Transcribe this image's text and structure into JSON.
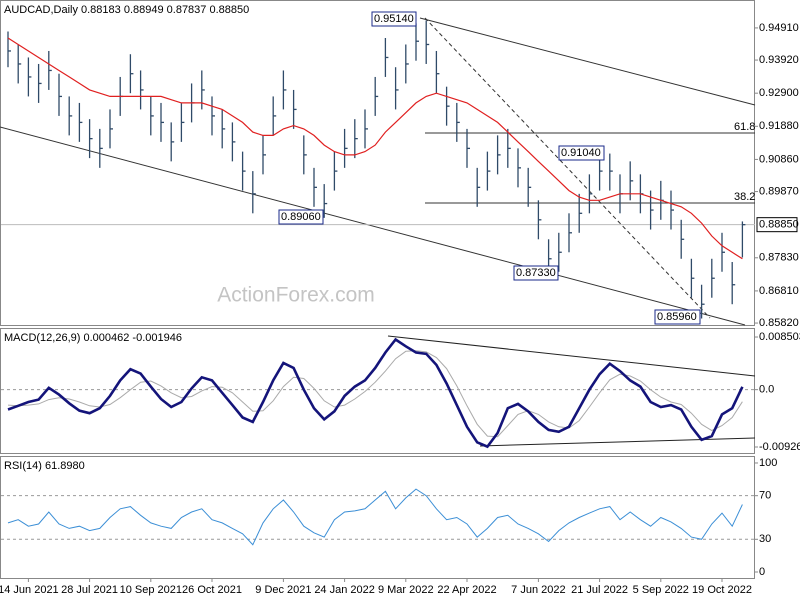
{
  "chart_data": [
    {
      "type": "ohlc",
      "title": "AUDCAD,Daily  0.88183 0.88949 0.87837 0.88850",
      "categories": [
        null,
        null,
        "14 Jun 2021",
        null,
        null,
        null,
        null,
        null,
        "28 Jul 2021",
        null,
        null,
        null,
        null,
        null,
        "10 Sep 2021",
        null,
        null,
        null,
        null,
        null,
        "26 Oct 2021",
        null,
        null,
        null,
        null,
        null,
        null,
        "9 Dec 2021",
        null,
        null,
        null,
        null,
        null,
        "24 Jan 2022",
        null,
        null,
        null,
        null,
        null,
        "9 Mar 2022",
        null,
        null,
        null,
        null,
        null,
        "22 Apr 2022",
        null,
        null,
        null,
        null,
        null,
        null,
        "7 Jun 2022",
        null,
        null,
        null,
        null,
        null,
        "21 Jul 2022",
        null,
        null,
        null,
        null,
        null,
        "5 Sep 2022",
        null,
        null,
        null,
        null,
        null,
        "19 Oct 2022",
        null,
        null
      ],
      "series": [
        {
          "name": "high",
          "color": "#2f4a68",
          "values": [
            0.948,
            0.944,
            0.94,
            0.938,
            0.942,
            0.935,
            0.928,
            0.926,
            0.921,
            0.918,
            0.924,
            0.934,
            0.941,
            0.936,
            0.928,
            0.926,
            0.92,
            0.926,
            0.932,
            0.936,
            0.928,
            0.924,
            0.92,
            0.911,
            0.905,
            0.916,
            0.928,
            0.936,
            0.93,
            0.916,
            0.906,
            0.901,
            0.911,
            0.918,
            0.921,
            0.924,
            0.934,
            0.946,
            0.937,
            0.944,
            0.9505,
            0.9514,
            0.942,
            0.931,
            0.926,
            0.918,
            0.906,
            0.911,
            0.916,
            0.918,
            0.912,
            0.906,
            0.896,
            0.884,
            0.886,
            0.892,
            0.898,
            0.904,
            0.909,
            0.9104,
            0.904,
            0.908,
            0.904,
            0.899,
            0.902,
            0.899,
            0.89,
            0.878,
            0.87,
            0.878,
            0.886,
            0.877,
            0.8895
          ]
        },
        {
          "name": "low",
          "color": "#2f4a68",
          "values": [
            0.937,
            0.932,
            0.928,
            0.926,
            0.93,
            0.922,
            0.916,
            0.914,
            0.909,
            0.906,
            0.912,
            0.922,
            0.929,
            0.924,
            0.916,
            0.914,
            0.908,
            0.914,
            0.92,
            0.924,
            0.916,
            0.912,
            0.908,
            0.899,
            0.892,
            0.904,
            0.916,
            0.924,
            0.918,
            0.904,
            0.894,
            0.8906,
            0.899,
            0.906,
            0.909,
            0.912,
            0.922,
            0.934,
            0.924,
            0.932,
            0.939,
            0.938,
            0.929,
            0.919,
            0.914,
            0.906,
            0.894,
            0.899,
            0.904,
            0.906,
            0.9,
            0.894,
            0.884,
            0.8733,
            0.874,
            0.88,
            0.886,
            0.892,
            0.899,
            0.899,
            0.892,
            0.896,
            0.892,
            0.887,
            0.89,
            0.887,
            0.878,
            0.866,
            0.8596,
            0.866,
            0.874,
            0.864,
            0.8784
          ]
        },
        {
          "name": "close",
          "color": "#2f4a68",
          "values": [
            0.942,
            0.938,
            0.934,
            0.932,
            0.936,
            0.928,
            0.922,
            0.92,
            0.915,
            0.912,
            0.918,
            0.928,
            0.935,
            0.93,
            0.922,
            0.92,
            0.914,
            0.92,
            0.926,
            0.93,
            0.922,
            0.918,
            0.914,
            0.905,
            0.898,
            0.91,
            0.922,
            0.93,
            0.924,
            0.91,
            0.9,
            0.895,
            0.905,
            0.912,
            0.915,
            0.918,
            0.928,
            0.94,
            0.93,
            0.938,
            0.945,
            0.944,
            0.935,
            0.925,
            0.92,
            0.912,
            0.9,
            0.905,
            0.91,
            0.912,
            0.906,
            0.9,
            0.89,
            0.878,
            0.88,
            0.886,
            0.892,
            0.898,
            0.905,
            0.905,
            0.898,
            0.902,
            0.898,
            0.893,
            0.896,
            0.893,
            0.884,
            0.872,
            0.864,
            0.872,
            0.88,
            0.87,
            0.8885
          ]
        },
        {
          "name": "moving-average",
          "color": "#e02020",
          "values": [
            0.946,
            0.944,
            0.942,
            0.94,
            0.938,
            0.936,
            0.934,
            0.932,
            0.93,
            0.929,
            0.928,
            0.928,
            0.928,
            0.928,
            0.928,
            0.928,
            0.927,
            0.926,
            0.926,
            0.926,
            0.925,
            0.924,
            0.922,
            0.92,
            0.917,
            0.916,
            0.916,
            0.918,
            0.919,
            0.918,
            0.916,
            0.913,
            0.911,
            0.91,
            0.91,
            0.911,
            0.913,
            0.917,
            0.92,
            0.923,
            0.926,
            0.928,
            0.929,
            0.928,
            0.927,
            0.926,
            0.924,
            0.922,
            0.92,
            0.917,
            0.914,
            0.911,
            0.908,
            0.905,
            0.902,
            0.899,
            0.897,
            0.896,
            0.896,
            0.897,
            0.898,
            0.898,
            0.898,
            0.897,
            0.896,
            0.895,
            0.894,
            0.892,
            0.889,
            0.885,
            0.882,
            0.88,
            0.878
          ]
        }
      ],
      "ylim": [
        0.8576,
        0.9577
      ],
      "yticks": [
        {
          "value": 0.9491,
          "label": "0.94910"
        },
        {
          "value": 0.9392,
          "label": "0.93920"
        },
        {
          "value": 0.929,
          "label": "0.92900"
        },
        {
          "value": 0.9188,
          "label": "0.91880"
        },
        {
          "value": 0.9086,
          "label": "0.90860"
        },
        {
          "value": 0.8987,
          "label": "0.89870"
        },
        {
          "value": 0.8783,
          "label": "0.87830"
        },
        {
          "value": 0.8681,
          "label": "0.86810"
        },
        {
          "value": 0.8582,
          "label": "0.85820"
        }
      ],
      "current_price": {
        "value": 0.8885,
        "label": "0.88850"
      },
      "annotations": [
        "0.95140",
        "0.89060",
        "0.87330",
        "0.91040",
        "0.85960",
        "61.8",
        "38.2"
      ],
      "watermark": "ActionForex.com",
      "grid": false
    },
    {
      "type": "line",
      "title": "MACD(12,26,9) 0.000462 -0.001946",
      "series": [
        {
          "name": "macd",
          "color": "#14147a",
          "values": [
            -0.0032,
            -0.0026,
            -0.002,
            -0.0016,
            0.0003,
            -0.0008,
            -0.0022,
            -0.0034,
            -0.0038,
            -0.003,
            -0.001,
            0.0015,
            0.0033,
            0.0026,
            0.0005,
            -0.0015,
            -0.0028,
            -0.002,
            0.0002,
            0.002,
            0.0015,
            -0.0005,
            -0.0025,
            -0.0045,
            -0.0052,
            -0.002,
            0.0015,
            0.0043,
            0.0035,
            0,
            -0.003,
            -0.0048,
            -0.0035,
            -0.001,
            0.0005,
            0.0015,
            0.0035,
            0.006,
            0.0081,
            0.007,
            0.006,
            0.0058,
            0.004,
            0.001,
            -0.0025,
            -0.006,
            -0.0085,
            -0.0092,
            -0.007,
            -0.003,
            -0.0023,
            -0.0035,
            -0.0052,
            -0.0065,
            -0.0068,
            -0.006,
            -0.003,
            0,
            0.0025,
            0.0042,
            0.003,
            0.0015,
            0.0005,
            -0.002,
            -0.0028,
            -0.0025,
            -0.0032,
            -0.006,
            -0.0081,
            -0.0075,
            -0.004,
            -0.003,
            0.000462
          ]
        },
        {
          "name": "signal",
          "color": "#aaaaaa",
          "values": [
            -0.0025,
            -0.0026,
            -0.0025,
            -0.0023,
            -0.0016,
            -0.0013,
            -0.0015,
            -0.002,
            -0.0026,
            -0.0028,
            -0.0024,
            -0.0013,
            0,
            0.0012,
            0.0014,
            0.0006,
            -0.0005,
            -0.0013,
            -0.0011,
            -0.0002,
            0.0005,
            0.0004,
            -0.0005,
            -0.002,
            -0.0035,
            -0.0034,
            -0.0018,
            0.0005,
            0.002,
            0.0018,
            0.0002,
            -0.0018,
            -0.0028,
            -0.0025,
            -0.0015,
            -0.0003,
            0.0012,
            0.003,
            0.005,
            0.0062,
            0.0063,
            0.0061,
            0.0052,
            0.0034,
            0.0006,
            -0.0026,
            -0.0056,
            -0.0075,
            -0.0076,
            -0.0058,
            -0.004,
            -0.0034,
            -0.004,
            -0.0052,
            -0.006,
            -0.0062,
            -0.005,
            -0.0028,
            -0.0005,
            0.0016,
            0.0025,
            0.0022,
            0.0014,
            0,
            -0.0012,
            -0.002,
            -0.0024,
            -0.0038,
            -0.0056,
            -0.0066,
            -0.0058,
            -0.0045,
            -0.001946
          ]
        }
      ],
      "ylim": [
        -0.01023,
        0.00996
      ],
      "yticks": [
        0.008503,
        {
          "value": 0,
          "label": "0.0"
        },
        -0.009262
      ],
      "reference_lines": [
        0
      ]
    },
    {
      "type": "line",
      "title": "RSI(14) 61.8980",
      "series": [
        {
          "name": "rsi",
          "color": "#3c8fd6",
          "values": [
            45,
            48,
            42,
            44,
            55,
            44,
            40,
            42,
            38,
            40,
            50,
            58,
            60,
            52,
            45,
            42,
            40,
            50,
            55,
            58,
            48,
            45,
            40,
            35,
            25,
            45,
            58,
            66,
            55,
            42,
            36,
            32,
            48,
            55,
            56,
            58,
            66,
            74,
            58,
            68,
            76,
            70,
            58,
            48,
            50,
            44,
            32,
            40,
            50,
            52,
            44,
            40,
            35,
            28,
            38,
            45,
            50,
            54,
            58,
            60,
            48,
            55,
            48,
            42,
            50,
            46,
            40,
            32,
            30,
            44,
            54,
            42,
            61.898
          ]
        }
      ],
      "ylim": [
        -5.5,
        106.4
      ],
      "yticks": [
        100,
        70,
        30,
        0
      ],
      "reference_lines": [
        70,
        30
      ]
    }
  ]
}
